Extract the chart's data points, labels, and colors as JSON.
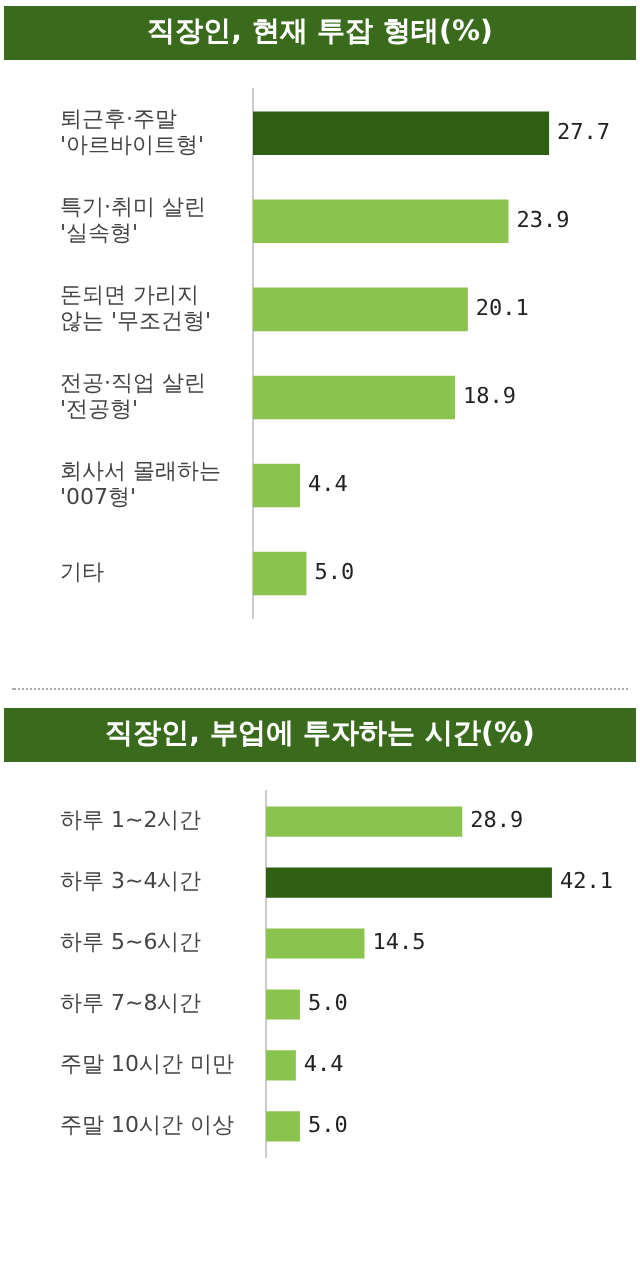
{
  "chart_data": [
    {
      "type": "bar",
      "orientation": "horizontal",
      "title": "직장인, 현재 투잡 형태(%)",
      "categories": [
        "퇴근후·주말\n'아르바이트형'",
        "특기·취미 살린\n'실속형'",
        "돈되면 가리지\n않는 '무조건형'",
        "전공·직업 살린\n'전공형'",
        "회사서 몰래하는\n'007형'",
        "기타"
      ],
      "values": [
        27.7,
        23.9,
        20.1,
        18.9,
        4.4,
        5.0
      ],
      "value_labels": [
        "27.7",
        "23.9",
        "20.1",
        "18.9",
        "4.4",
        "5.0"
      ],
      "colors": [
        "#2f5f12",
        "#8bc34f",
        "#8bc34f",
        "#8bc34f",
        "#8bc34f",
        "#8bc34f"
      ],
      "grid": false,
      "legend": false
    },
    {
      "type": "bar",
      "orientation": "horizontal",
      "title": "직장인, 부업에 투자하는 시간(%)",
      "categories": [
        "하루 1~2시간",
        "하루 3~4시간",
        "하루 5~6시간",
        "하루 7~8시간",
        "주말 10시간 미만",
        "주말 10시간 이상"
      ],
      "values": [
        28.9,
        42.1,
        14.5,
        5.0,
        4.4,
        5.0
      ],
      "value_labels": [
        "28.9",
        "42.1",
        "14.5",
        "5.0",
        "4.4",
        "5.0"
      ],
      "colors": [
        "#8bc34f",
        "#2f5f12",
        "#8bc34f",
        "#8bc34f",
        "#8bc34f",
        "#8bc34f"
      ],
      "grid": false,
      "legend": false
    }
  ]
}
